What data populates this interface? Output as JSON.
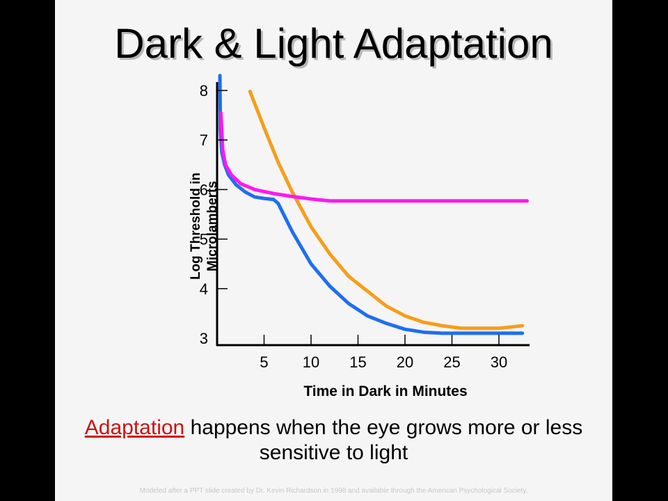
{
  "slide": {
    "title": "Dark & Light Adaptation",
    "caption_highlight": "Adaptation",
    "caption_rest": " happens when the eye grows more or less sensitive to light",
    "footer": "Modeled after a PPT slide created by Dr. Kevin Richardson in 1998 and available through the American Psychological Society."
  },
  "chart_data": {
    "type": "line",
    "title": "",
    "xlabel": "Time in Dark in Minutes",
    "ylabel_lines": [
      "Log Threshold in",
      "Microlamberts"
    ],
    "xlim": [
      0,
      33
    ],
    "ylim": [
      3,
      8.3
    ],
    "x_ticks": [
      5,
      10,
      15,
      20,
      25,
      30
    ],
    "y_ticks": [
      3,
      4,
      5,
      6,
      7,
      8
    ],
    "series": [
      {
        "color": "#f59e1b",
        "x": [
          3.5,
          5,
          6.5,
          8,
          10,
          12,
          14,
          16,
          18,
          20,
          22,
          24,
          26,
          28,
          30,
          32.5
        ],
        "y": [
          7.98,
          7.25,
          6.55,
          5.95,
          5.25,
          4.7,
          4.25,
          3.95,
          3.65,
          3.45,
          3.32,
          3.25,
          3.2,
          3.2,
          3.2,
          3.25
        ]
      },
      {
        "color": "#1f6ef0",
        "x": [
          0.3,
          0.35,
          0.5,
          0.8,
          1.2,
          2,
          3,
          4,
          5,
          6,
          6.5,
          8,
          10,
          12,
          14,
          16,
          18,
          20,
          22,
          24,
          26,
          28,
          30,
          32.5
        ],
        "y": [
          8.3,
          7.2,
          6.75,
          6.5,
          6.3,
          6.1,
          5.95,
          5.85,
          5.82,
          5.8,
          5.72,
          5.15,
          4.5,
          4.05,
          3.7,
          3.45,
          3.3,
          3.18,
          3.12,
          3.1,
          3.1,
          3.1,
          3.1,
          3.1
        ]
      },
      {
        "color": "#ff18f0",
        "x": [
          0.4,
          0.6,
          0.9,
          1.5,
          2.5,
          4,
          6,
          8,
          10,
          12,
          16,
          20,
          25,
          30,
          33
        ],
        "y": [
          7.55,
          6.8,
          6.5,
          6.3,
          6.12,
          6.0,
          5.92,
          5.86,
          5.81,
          5.77,
          5.77,
          5.77,
          5.77,
          5.77,
          5.77
        ]
      }
    ]
  }
}
